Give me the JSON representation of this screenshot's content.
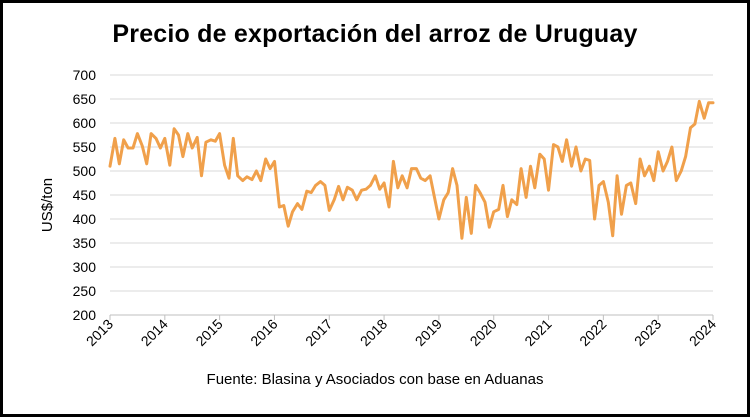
{
  "chart_data": {
    "type": "line",
    "title": "Precio de exportación del arroz de Uruguay",
    "xlabel": "",
    "ylabel": "US$/ton",
    "source": "Fuente: Blasina y Asociados con base en Aduanas",
    "ylim": [
      200,
      700
    ],
    "yticks": [
      700,
      650,
      600,
      550,
      500,
      450,
      400,
      350,
      300,
      250,
      200
    ],
    "xlim": [
      2013,
      2024
    ],
    "xticks": [
      "2013",
      "2014",
      "2015",
      "2016",
      "2017",
      "2018",
      "2019",
      "2020",
      "2021",
      "2022",
      "2023",
      "2024"
    ],
    "grid": true,
    "line_color": "#F0A04B",
    "series": [
      {
        "name": "Precio de exportación",
        "x": [
          2013.0,
          2013.09,
          2013.17,
          2013.25,
          2013.33,
          2013.42,
          2013.5,
          2013.59,
          2013.67,
          2013.75,
          2013.84,
          2013.92,
          2014.0,
          2014.09,
          2014.17,
          2014.25,
          2014.33,
          2014.42,
          2014.5,
          2014.59,
          2014.67,
          2014.75,
          2014.84,
          2014.92,
          2015.0,
          2015.09,
          2015.17,
          2015.25,
          2015.33,
          2015.42,
          2015.5,
          2015.59,
          2015.67,
          2015.75,
          2015.84,
          2015.92,
          2016.0,
          2016.09,
          2016.17,
          2016.25,
          2016.33,
          2016.42,
          2016.5,
          2016.59,
          2016.67,
          2016.75,
          2016.84,
          2016.92,
          2017.0,
          2017.09,
          2017.17,
          2017.25,
          2017.33,
          2017.42,
          2017.5,
          2017.59,
          2017.67,
          2017.75,
          2017.84,
          2017.92,
          2018.0,
          2018.09,
          2018.17,
          2018.25,
          2018.33,
          2018.42,
          2018.5,
          2018.59,
          2018.67,
          2018.75,
          2018.84,
          2018.92,
          2019.0,
          2019.09,
          2019.17,
          2019.25,
          2019.33,
          2019.42,
          2019.5,
          2019.59,
          2019.67,
          2019.75,
          2019.84,
          2019.92,
          2020.0,
          2020.09,
          2020.17,
          2020.25,
          2020.33,
          2020.42,
          2020.5,
          2020.59,
          2020.67,
          2020.75,
          2020.84,
          2020.92,
          2021.0,
          2021.09,
          2021.17,
          2021.25,
          2021.33,
          2021.42,
          2021.5,
          2021.59,
          2021.67,
          2021.75,
          2021.84,
          2021.92,
          2022.0,
          2022.09,
          2022.17,
          2022.25,
          2022.33,
          2022.42,
          2022.5,
          2022.59,
          2022.67,
          2022.75,
          2022.84,
          2022.92,
          2023.0,
          2023.09,
          2023.17,
          2023.25,
          2023.33,
          2023.42,
          2023.5,
          2023.59,
          2023.67,
          2023.75,
          2023.84,
          2023.92,
          2024.0
        ],
        "values": [
          510,
          568,
          515,
          565,
          548,
          548,
          578,
          552,
          515,
          578,
          568,
          548,
          568,
          512,
          588,
          575,
          530,
          578,
          548,
          570,
          490,
          560,
          565,
          562,
          578,
          512,
          485,
          568,
          490,
          480,
          488,
          482,
          500,
          480,
          525,
          505,
          520,
          425,
          428,
          385,
          415,
          432,
          420,
          458,
          455,
          470,
          478,
          470,
          418,
          440,
          468,
          440,
          466,
          460,
          440,
          460,
          462,
          470,
          490,
          462,
          475,
          425,
          520,
          465,
          490,
          465,
          505,
          505,
          485,
          480,
          490,
          445,
          400,
          440,
          455,
          505,
          470,
          360,
          445,
          370,
          470,
          455,
          435,
          383,
          415,
          420,
          470,
          405,
          440,
          430,
          505,
          445,
          510,
          465,
          535,
          525,
          460,
          555,
          550,
          520,
          565,
          510,
          550,
          500,
          525,
          522,
          400,
          470,
          478,
          435,
          365,
          490,
          410,
          470,
          475,
          432,
          525,
          490,
          510,
          480,
          540,
          500,
          520,
          550,
          480,
          500,
          530,
          590,
          598,
          645,
          610,
          642,
          642
        ]
      }
    ]
  }
}
